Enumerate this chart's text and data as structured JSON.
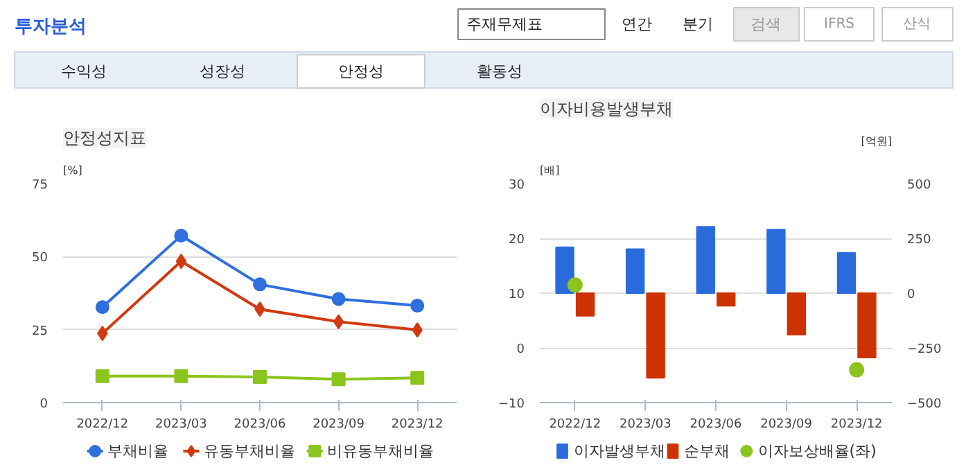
{
  "chart_data": [
    {
      "type": "line",
      "title": "안정성지표",
      "ylabel": "[%]",
      "categories": [
        "2022/12",
        "2023/03",
        "2023/06",
        "2023/09",
        "2023/12"
      ],
      "ylim": [
        0,
        75
      ],
      "yticks": [
        0,
        25,
        50,
        75
      ],
      "grid": "y",
      "legend": "bottom",
      "annotations": [
        "투자분석",
        "주재무제표",
        "연간",
        "분기",
        "검색",
        "IFRS",
        "산식",
        "수익성",
        "성장성",
        "안정성",
        "활동성"
      ],
      "series": [
        {
          "name": "부채비율",
          "color": "#2f6fde",
          "marker": "circle",
          "values": [
            32.7,
            57.2,
            40.5,
            35.5,
            33.2
          ]
        },
        {
          "name": "유동부채비율",
          "color": "#d03a10",
          "marker": "diamond",
          "values": [
            23.7,
            48.4,
            32.0,
            27.7,
            24.9
          ]
        },
        {
          "name": "비유동부채비율",
          "color": "#8cc41e",
          "marker": "square",
          "values": [
            9.1,
            9.1,
            8.8,
            8.0,
            8.5
          ]
        }
      ]
    },
    {
      "type": "bar",
      "title": "이자비용발생부채",
      "ylabel": "[배]",
      "y2label": "[억원]",
      "categories": [
        "2022/12",
        "2023/03",
        "2023/06",
        "2023/09",
        "2023/12"
      ],
      "ylim": [
        -10,
        30
      ],
      "yticks": [
        -10,
        0,
        10,
        20,
        30
      ],
      "y2lim": [
        -500,
        500
      ],
      "y2ticks": [
        -500,
        -250,
        0,
        250,
        500
      ],
      "grid": "y",
      "legend": "bottom",
      "series": [
        {
          "name": "이자발생부채",
          "color": "#2a6bdc",
          "axis": "y2",
          "values": [
            210,
            201,
            303,
            290,
            184
          ]
        },
        {
          "name": "순부채",
          "color": "#cc3300",
          "axis": "y2",
          "values": [
            -104,
            -387,
            -58,
            -190,
            -294
          ]
        },
        {
          "name": "이자보상배율(좌)",
          "type": "scatter",
          "marker": "circle",
          "color": "#8cc41e",
          "axis": "y",
          "values": [
            11.5,
            null,
            null,
            null,
            -4.0
          ]
        }
      ]
    }
  ]
}
